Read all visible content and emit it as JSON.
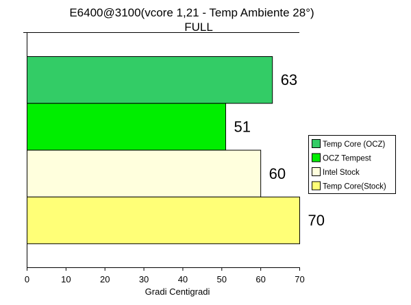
{
  "chart_data": {
    "type": "bar",
    "orientation": "horizontal",
    "title": "E6400@3100(vcore 1,21 - Temp Ambiente 28°)",
    "subtitle": "FULL",
    "xlabel": "Gradi Centigradi",
    "xlim": [
      0,
      70
    ],
    "xticks": [
      "0",
      "10",
      "20",
      "30",
      "40",
      "50",
      "60",
      "70"
    ],
    "grid": false,
    "legend_position": "right",
    "series": [
      {
        "name": "Temp Core (OCZ)",
        "value": 63,
        "color": "#33cc66"
      },
      {
        "name": "OCZ Tempest",
        "value": 51,
        "color": "#00ee00"
      },
      {
        "name": "Intel Stock",
        "value": 60,
        "color": "#ffffdd"
      },
      {
        "name": "Temp Core(Stock)",
        "value": 70,
        "color": "#ffff77"
      }
    ]
  }
}
